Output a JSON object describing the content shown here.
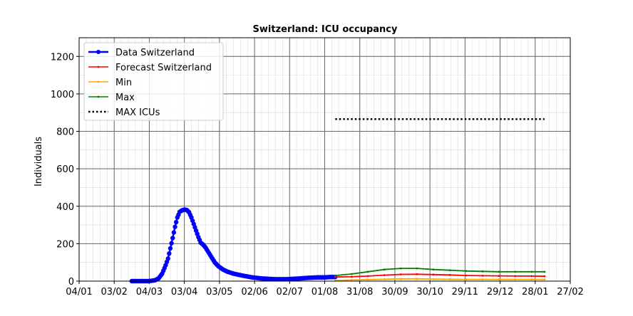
{
  "chart_data": {
    "type": "line",
    "title": "Switzerland: ICU occupancy",
    "xlabel": "",
    "ylabel": "Individuals",
    "x_axis": {
      "type": "date",
      "range": [
        "2020-01-04",
        "2021-02-27"
      ],
      "tick_dates": [
        "2020-01-04",
        "2020-02-03",
        "2020-03-04",
        "2020-04-03",
        "2020-05-03",
        "2020-06-02",
        "2020-07-02",
        "2020-08-01",
        "2020-08-31",
        "2020-09-30",
        "2020-10-30",
        "2020-11-29",
        "2020-12-29",
        "2021-01-28",
        "2021-02-27"
      ],
      "tick_labels": [
        "04/01",
        "03/02",
        "04/03",
        "03/04",
        "03/05",
        "02/06",
        "02/07",
        "01/08",
        "31/08",
        "30/09",
        "30/10",
        "29/11",
        "29/12",
        "28/01",
        "27/02"
      ]
    },
    "y_axis": {
      "range": [
        0,
        1300
      ],
      "ticks": [
        0,
        200,
        400,
        600,
        800,
        1000,
        1200
      ]
    },
    "grid": true,
    "legend": "top-left",
    "series": [
      {
        "name": "Data Switzerland",
        "color": "#0000ff",
        "points": [
          [
            "2020-02-18",
            0
          ],
          [
            "2020-02-25",
            0
          ],
          [
            "2020-03-03",
            0
          ],
          [
            "2020-03-06",
            2
          ],
          [
            "2020-03-09",
            5
          ],
          [
            "2020-03-12",
            15
          ],
          [
            "2020-03-15",
            40
          ],
          [
            "2020-03-18",
            85
          ],
          [
            "2020-03-20",
            120
          ],
          [
            "2020-03-22",
            175
          ],
          [
            "2020-03-24",
            230
          ],
          [
            "2020-03-26",
            290
          ],
          [
            "2020-03-28",
            340
          ],
          [
            "2020-03-30",
            370
          ],
          [
            "2020-04-01",
            378
          ],
          [
            "2020-04-03",
            382
          ],
          [
            "2020-04-05",
            380
          ],
          [
            "2020-04-07",
            368
          ],
          [
            "2020-04-09",
            340
          ],
          [
            "2020-04-11",
            305
          ],
          [
            "2020-04-13",
            270
          ],
          [
            "2020-04-15",
            235
          ],
          [
            "2020-04-17",
            205
          ],
          [
            "2020-04-19",
            195
          ],
          [
            "2020-04-21",
            180
          ],
          [
            "2020-04-23",
            160
          ],
          [
            "2020-04-25",
            140
          ],
          [
            "2020-04-27",
            120
          ],
          [
            "2020-04-29",
            100
          ],
          [
            "2020-05-02",
            80
          ],
          [
            "2020-05-06",
            62
          ],
          [
            "2020-05-10",
            50
          ],
          [
            "2020-05-15",
            40
          ],
          [
            "2020-05-20",
            33
          ],
          [
            "2020-05-25",
            27
          ],
          [
            "2020-05-31",
            20
          ],
          [
            "2020-06-07",
            15
          ],
          [
            "2020-06-14",
            12
          ],
          [
            "2020-06-21",
            10
          ],
          [
            "2020-06-28",
            10
          ],
          [
            "2020-07-05",
            12
          ],
          [
            "2020-07-12",
            15
          ],
          [
            "2020-07-19",
            18
          ],
          [
            "2020-07-26",
            20
          ],
          [
            "2020-08-01",
            20
          ],
          [
            "2020-08-06",
            22
          ],
          [
            "2020-08-10",
            22
          ]
        ]
      },
      {
        "name": "Forecast Switzerland",
        "color": "#ff0000",
        "points": [
          [
            "2020-08-10",
            22
          ],
          [
            "2020-08-24",
            23
          ],
          [
            "2020-09-07",
            27
          ],
          [
            "2020-09-21",
            32
          ],
          [
            "2020-10-05",
            36
          ],
          [
            "2020-10-19",
            37
          ],
          [
            "2020-11-02",
            35
          ],
          [
            "2020-11-16",
            33
          ],
          [
            "2020-11-30",
            30
          ],
          [
            "2020-12-14",
            29
          ],
          [
            "2020-12-28",
            28
          ],
          [
            "2021-01-11",
            27
          ],
          [
            "2021-01-25",
            27
          ],
          [
            "2021-02-05",
            26
          ]
        ]
      },
      {
        "name": "Min",
        "color": "#ffa500",
        "points": [
          [
            "2020-08-10",
            3
          ],
          [
            "2020-08-24",
            6
          ],
          [
            "2020-09-07",
            8
          ],
          [
            "2020-09-21",
            10
          ],
          [
            "2020-10-05",
            12
          ],
          [
            "2020-10-19",
            12
          ],
          [
            "2020-11-02",
            11
          ],
          [
            "2020-11-16",
            10
          ],
          [
            "2020-11-30",
            9
          ],
          [
            "2020-12-14",
            9
          ],
          [
            "2020-12-28",
            9
          ],
          [
            "2021-01-11",
            9
          ],
          [
            "2021-01-25",
            9
          ],
          [
            "2021-02-05",
            9
          ]
        ]
      },
      {
        "name": "Max",
        "color": "#008000",
        "points": [
          [
            "2020-08-10",
            30
          ],
          [
            "2020-08-24",
            38
          ],
          [
            "2020-09-07",
            50
          ],
          [
            "2020-09-21",
            62
          ],
          [
            "2020-10-05",
            68
          ],
          [
            "2020-10-19",
            68
          ],
          [
            "2020-11-02",
            62
          ],
          [
            "2020-11-16",
            58
          ],
          [
            "2020-11-30",
            54
          ],
          [
            "2020-12-14",
            52
          ],
          [
            "2020-12-28",
            50
          ],
          [
            "2021-01-11",
            50
          ],
          [
            "2021-01-25",
            50
          ],
          [
            "2021-02-05",
            50
          ]
        ]
      },
      {
        "name": "MAX ICUs",
        "color": "#000000",
        "dotted": true,
        "points": [
          [
            "2020-08-10",
            865
          ],
          [
            "2021-02-05",
            865
          ]
        ]
      }
    ]
  }
}
